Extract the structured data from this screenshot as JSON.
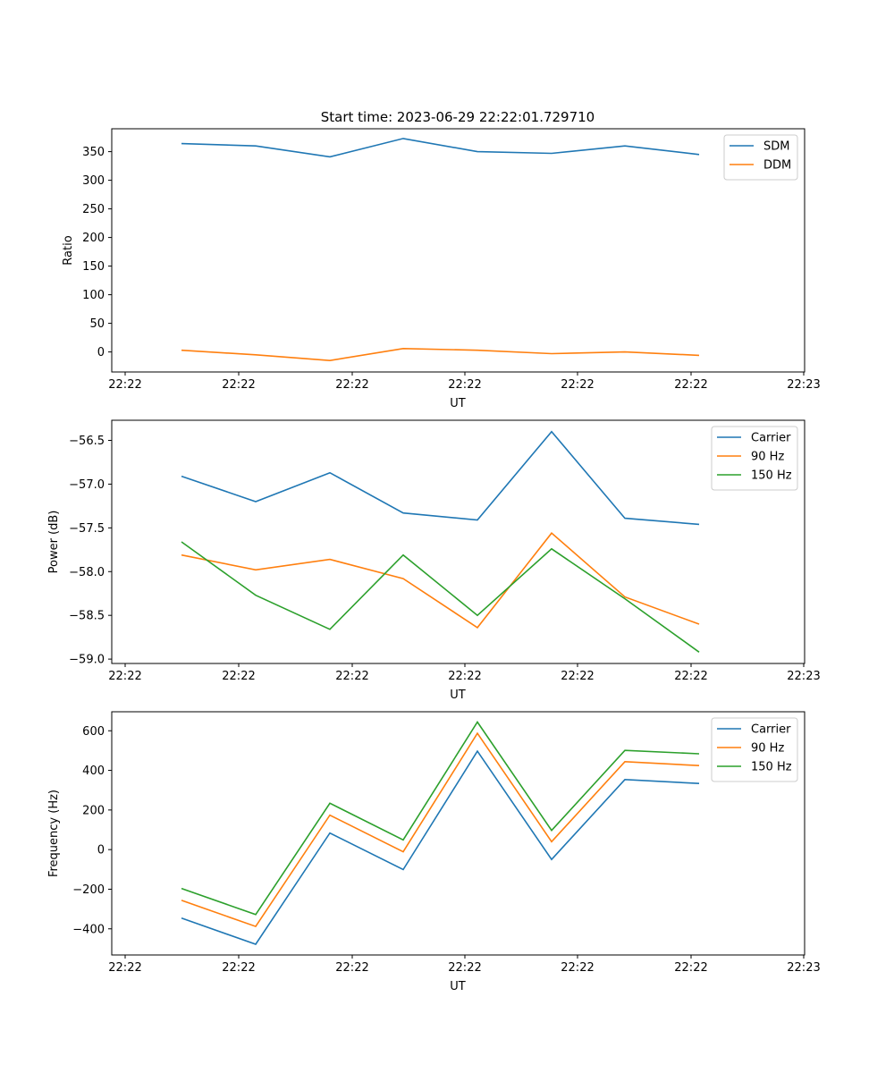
{
  "figure_title": "Start time: 2023-06-29 22:22:01.729710",
  "chart_data": [
    {
      "type": "line",
      "title": "Start time: 2023-06-29 22:22:01.729710",
      "xlabel": "UT",
      "ylabel": "Ratio",
      "x_tick_labels": [
        "22:22",
        "22:22",
        "22:22",
        "22:22",
        "22:22",
        "22:22",
        "22:23"
      ],
      "y_ticks": [
        0,
        50,
        100,
        150,
        200,
        250,
        300,
        350
      ],
      "ylim": [
        -35,
        390
      ],
      "grid": false,
      "legend_position": "upper right",
      "series": [
        {
          "name": "SDM",
          "color": "#1f77b4",
          "values": [
            364,
            360,
            341,
            373,
            350,
            347,
            360,
            345
          ]
        },
        {
          "name": "DDM",
          "color": "#ff7f0e",
          "values": [
            3,
            -5,
            -15,
            6,
            3,
            -3,
            0,
            -6
          ]
        }
      ]
    },
    {
      "type": "line",
      "title": "",
      "xlabel": "UT",
      "ylabel": "Power (dB)",
      "x_tick_labels": [
        "22:22",
        "22:22",
        "22:22",
        "22:22",
        "22:22",
        "22:22",
        "22:23"
      ],
      "y_ticks": [
        -59.0,
        -58.5,
        -58.0,
        -57.5,
        -57.0,
        -56.5
      ],
      "y_tick_labels": [
        "−59.0",
        "−58.5",
        "−58.0",
        "−57.5",
        "−57.0",
        "−56.5"
      ],
      "ylim": [
        -59.05,
        -56.27
      ],
      "grid": false,
      "legend_position": "upper right",
      "series": [
        {
          "name": "Carrier",
          "color": "#1f77b4",
          "values": [
            -56.91,
            -57.2,
            -56.87,
            -57.33,
            -57.41,
            -56.4,
            -57.39,
            -57.46
          ]
        },
        {
          "name": "90 Hz",
          "color": "#ff7f0e",
          "values": [
            -57.81,
            -57.98,
            -57.86,
            -58.08,
            -58.64,
            -57.56,
            -58.29,
            -58.6
          ]
        },
        {
          "name": "150 Hz",
          "color": "#2ca02c",
          "values": [
            -57.66,
            -58.27,
            -58.66,
            -57.81,
            -58.5,
            -57.74,
            -58.31,
            -58.92
          ]
        }
      ]
    },
    {
      "type": "line",
      "title": "",
      "xlabel": "UT",
      "ylabel": "Frequency (Hz)",
      "x_tick_labels": [
        "22:22",
        "22:22",
        "22:22",
        "22:22",
        "22:22",
        "22:22",
        "22:23"
      ],
      "y_ticks": [
        -400,
        -200,
        0,
        200,
        400,
        600
      ],
      "y_tick_labels": [
        "−400",
        "−200",
        "0",
        "200",
        "400",
        "600"
      ],
      "ylim": [
        -532,
        696
      ],
      "grid": false,
      "legend_position": "upper right",
      "series": [
        {
          "name": "Carrier",
          "color": "#1f77b4",
          "values": [
            -346,
            -478,
            84,
            -101,
            497,
            -50,
            354,
            334
          ]
        },
        {
          "name": "90 Hz",
          "color": "#ff7f0e",
          "values": [
            -256,
            -388,
            174,
            -11,
            587,
            40,
            444,
            424
          ]
        },
        {
          "name": "150 Hz",
          "color": "#2ca02c",
          "values": [
            -196,
            -328,
            234,
            49,
            644,
            97,
            501,
            484
          ]
        }
      ]
    }
  ]
}
